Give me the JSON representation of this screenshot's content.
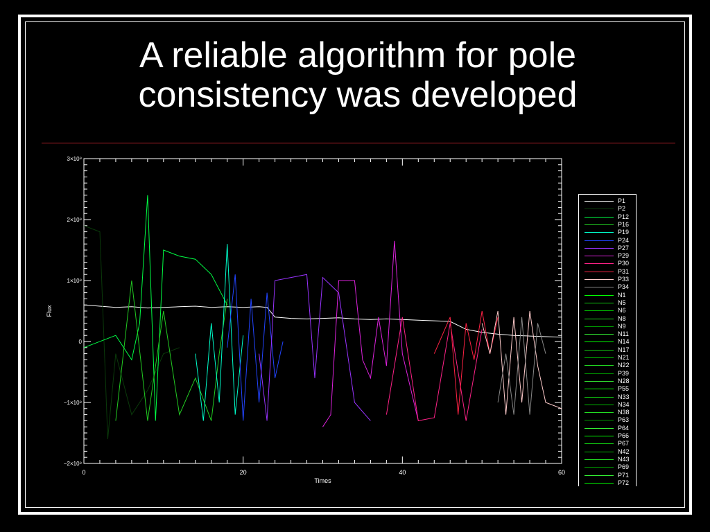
{
  "slide": {
    "title": "A reliable algorithm for pole consistency was developed"
  },
  "colors": {
    "background": "#000000",
    "frame": "#ffffff",
    "rule": "#b0202a"
  },
  "chart_data": {
    "type": "line",
    "xlabel": "Times",
    "ylabel": "Flux",
    "xlim": [
      0,
      60
    ],
    "ylim": [
      -2000000000,
      3000000000
    ],
    "x_ticks": [
      {
        "value": 0,
        "label": "0"
      },
      {
        "value": 20,
        "label": "20"
      },
      {
        "value": 40,
        "label": "40"
      },
      {
        "value": 60,
        "label": "60"
      }
    ],
    "y_ticks": [
      {
        "value": -2000000000,
        "label": "−2×10⁹"
      },
      {
        "value": -1000000000,
        "label": "−1×10⁹"
      },
      {
        "value": 0,
        "label": "0"
      },
      {
        "value": 1000000000,
        "label": "1×10⁹"
      },
      {
        "value": 2000000000,
        "label": "2×10⁹"
      },
      {
        "value": 3000000000,
        "label": "3×10⁹"
      }
    ],
    "legend_position": "right",
    "series": [
      {
        "name": "P1",
        "color": "#ffffff",
        "x": [
          0,
          2,
          4,
          6,
          8,
          10,
          12,
          14,
          16,
          18,
          20,
          22,
          23,
          24,
          26,
          28,
          30,
          32,
          34,
          36,
          38,
          40,
          42,
          44,
          46,
          48,
          50,
          52,
          54,
          56,
          58,
          60
        ],
        "y": [
          600000000,
          580000000,
          560000000,
          570000000,
          550000000,
          560000000,
          570000000,
          580000000,
          560000000,
          570000000,
          560000000,
          570000000,
          560000000,
          400000000,
          380000000,
          370000000,
          380000000,
          390000000,
          370000000,
          360000000,
          370000000,
          360000000,
          350000000,
          340000000,
          330000000,
          200000000,
          150000000,
          120000000,
          100000000,
          90000000,
          80000000,
          70000000
        ]
      },
      {
        "name": "P2",
        "color": "#0a3a0a",
        "x": [
          0,
          2,
          3,
          4,
          6,
          8,
          10,
          12
        ],
        "y": [
          1900000000,
          1800000000,
          -1600000000,
          -200000000,
          -1200000000,
          -800000000,
          -200000000,
          -100000000
        ]
      },
      {
        "name": "P12",
        "color": "#00ff44",
        "x": [
          0,
          4,
          6,
          7,
          8,
          9,
          10,
          12,
          14,
          16,
          18
        ],
        "y": [
          -100000000,
          100000000,
          -300000000,
          300000000,
          2400000000,
          -1300000000,
          1500000000,
          1400000000,
          1350000000,
          1100000000,
          600000000
        ]
      },
      {
        "name": "P16",
        "color": "#22cc22",
        "x": [
          4,
          6,
          8,
          10,
          12,
          14,
          16,
          17,
          18
        ],
        "y": [
          -1300000000,
          1000000000,
          -1300000000,
          500000000,
          -1200000000,
          -600000000,
          -1300000000,
          -200000000,
          700000000
        ]
      },
      {
        "name": "P19",
        "color": "#00ffcc",
        "x": [
          14,
          15,
          16,
          17,
          18,
          19,
          20
        ],
        "y": [
          -200000000,
          -1300000000,
          300000000,
          -1000000000,
          1600000000,
          -1200000000,
          100000000
        ]
      },
      {
        "name": "P24",
        "color": "#2244ff",
        "x": [
          18,
          19,
          20,
          21,
          22,
          23,
          24,
          25
        ],
        "y": [
          -100000000,
          1100000000,
          -1300000000,
          700000000,
          -1000000000,
          800000000,
          -600000000,
          0
        ]
      },
      {
        "name": "P27",
        "color": "#9933ff",
        "x": [
          22,
          23,
          24,
          26,
          28,
          29,
          30,
          32,
          34,
          36
        ],
        "y": [
          -200000000,
          -1300000000,
          1000000000,
          1050000000,
          1100000000,
          -600000000,
          1050000000,
          800000000,
          -1000000000,
          -1300000000
        ]
      },
      {
        "name": "P29",
        "color": "#dd22dd",
        "x": [
          30,
          31,
          32,
          34,
          35,
          36,
          37,
          38,
          39,
          40,
          42
        ],
        "y": [
          -1400000000,
          -1200000000,
          1000000000,
          1000000000,
          -300000000,
          -600000000,
          400000000,
          -400000000,
          1650000000,
          -200000000,
          -1300000000
        ]
      },
      {
        "name": "P30",
        "color": "#ff2288",
        "x": [
          38,
          40,
          42,
          44,
          46,
          48,
          50
        ],
        "y": [
          -1200000000,
          400000000,
          -1300000000,
          -1250000000,
          300000000,
          -1300000000,
          200000000
        ]
      },
      {
        "name": "P31",
        "color": "#ff2244",
        "x": [
          44,
          46,
          47,
          48,
          49,
          50,
          51,
          52
        ],
        "y": [
          -200000000,
          400000000,
          -1200000000,
          300000000,
          -300000000,
          500000000,
          -200000000,
          400000000
        ]
      },
      {
        "name": "P33",
        "color": "#ffcccc",
        "x": [
          50,
          51,
          52,
          53,
          54,
          55,
          56,
          57,
          58,
          59,
          60
        ],
        "y": [
          300000000,
          -200000000,
          500000000,
          -1200000000,
          400000000,
          -1000000000,
          500000000,
          -400000000,
          -1000000000,
          -1050000000,
          -1100000000
        ]
      },
      {
        "name": "P34",
        "color": "#888888",
        "x": [
          52,
          53,
          54,
          55,
          56,
          57,
          58
        ],
        "y": [
          -1000000000,
          -200000000,
          -1200000000,
          400000000,
          -1200000000,
          300000000,
          -200000000
        ]
      }
    ],
    "legend_entries": [
      "P1",
      "P2",
      "P12",
      "P16",
      "P19",
      "P24",
      "P27",
      "P29",
      "P30",
      "P31",
      "P33",
      "P34",
      "N1",
      "N5",
      "N6",
      "N8",
      "N9",
      "N11",
      "N14",
      "N17",
      "N21",
      "N22",
      "P39",
      "N28",
      "P55",
      "N33",
      "N34",
      "N38",
      "P63",
      "P64",
      "P66",
      "P67",
      "N42",
      "N43",
      "P69",
      "P71",
      "P72"
    ]
  }
}
